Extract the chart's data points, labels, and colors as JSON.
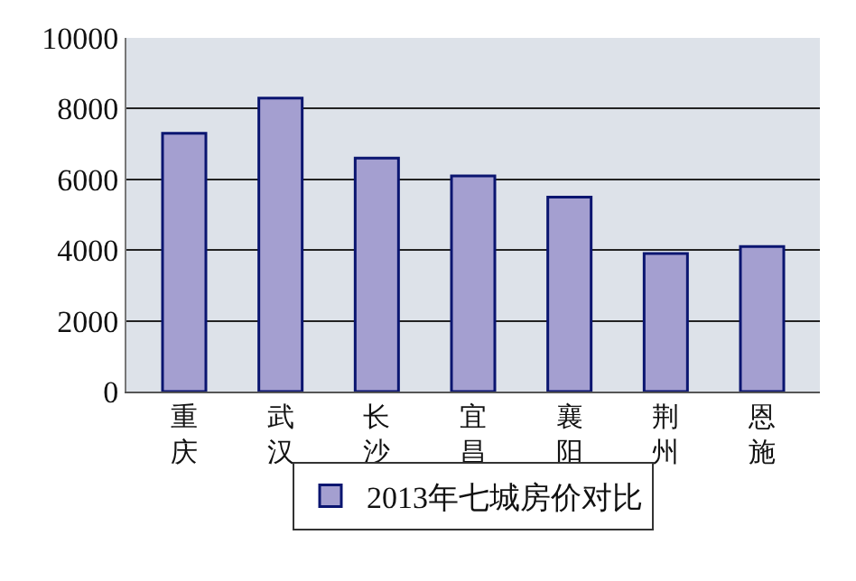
{
  "chart_data": {
    "type": "bar",
    "categories": [
      "重庆",
      "武汉",
      "长沙",
      "宜昌",
      "襄阳",
      "荆州",
      "恩施"
    ],
    "series": [
      {
        "name": "2013年七城房价对比",
        "color": "#a49fd0",
        "values": [
          7300,
          8300,
          6600,
          6100,
          5500,
          3900,
          4100
        ]
      }
    ],
    "ylim": [
      0,
      10000
    ],
    "yticks": [
      0,
      2000,
      4000,
      6000,
      8000,
      10000
    ],
    "grid": "y",
    "legend": "bottom"
  }
}
